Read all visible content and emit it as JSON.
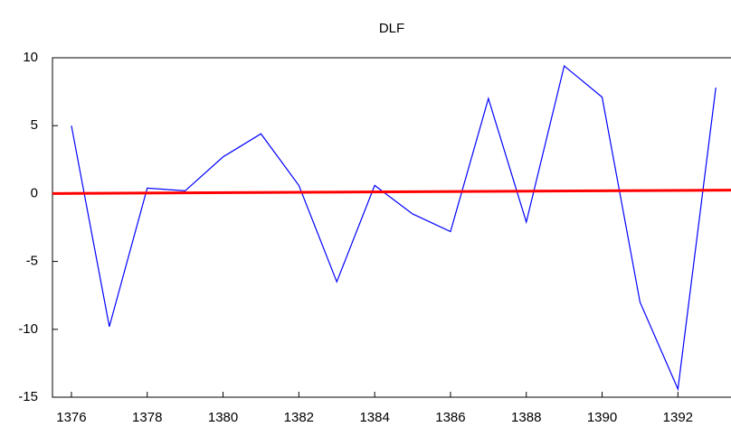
{
  "chart_data": {
    "type": "line",
    "title": "DLF",
    "x": [
      1376,
      1377,
      1378,
      1379,
      1380,
      1381,
      1382,
      1383,
      1384,
      1385,
      1386,
      1387,
      1388,
      1389,
      1390,
      1391,
      1392,
      1393
    ],
    "series": [
      {
        "color": "#0000ff",
        "values": [
          5.0,
          -9.8,
          0.4,
          0.2,
          2.7,
          4.4,
          0.6,
          -6.5,
          0.6,
          -1.5,
          -2.8,
          7.0,
          -2.1,
          9.4,
          7.1,
          -8.0,
          -14.4,
          7.8
        ]
      },
      {
        "color": "#ff0000",
        "x": [
          1375.5,
          1393.4
        ],
        "values": [
          0.0,
          0.25
        ]
      }
    ],
    "xlim": [
      1375.5,
      1393.4
    ],
    "xticks": [
      1376,
      1378,
      1380,
      1382,
      1384,
      1386,
      1388,
      1390,
      1392
    ],
    "ylim": [
      -15,
      10
    ],
    "yticks": [
      -15,
      -10,
      -5,
      0,
      5,
      10
    ]
  }
}
